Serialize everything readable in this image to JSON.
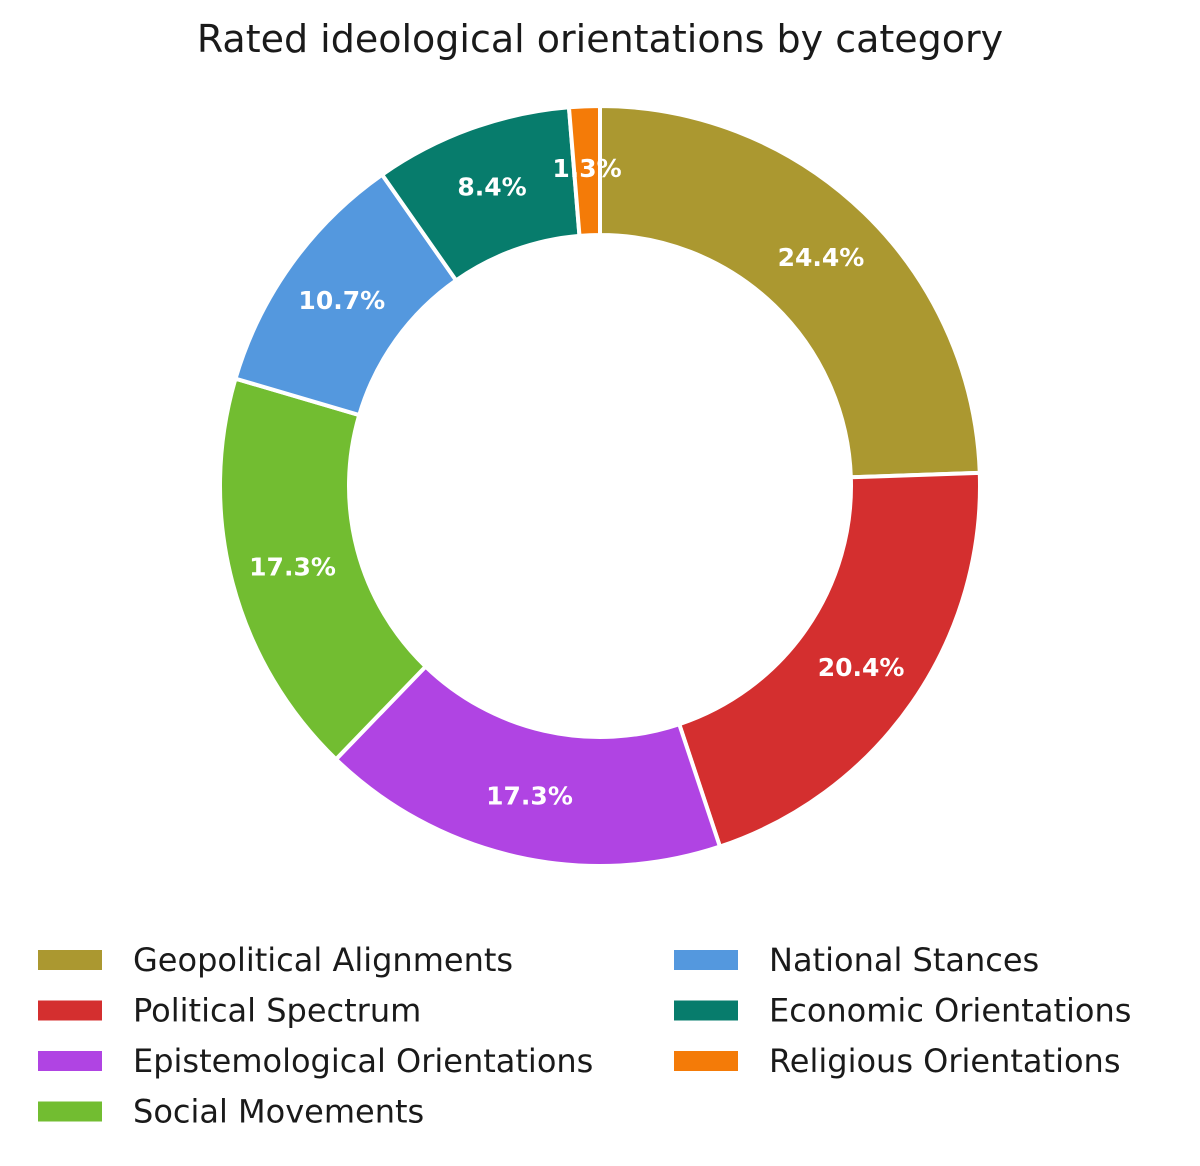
{
  "chart_data": {
    "type": "pie",
    "variant": "donut",
    "title": "Rated ideological orientations by category",
    "start_angle_deg": 90,
    "direction": "clockwise",
    "slices": [
      {
        "label": "Geopolitical Alignments",
        "value": 24.4,
        "display": "24.4%",
        "color": "#ab9830"
      },
      {
        "label": "Political Spectrum",
        "value": 20.4,
        "display": "20.4%",
        "color": "#d42f2f"
      },
      {
        "label": "Epistemological Orientations",
        "value": 17.3,
        "display": "17.3%",
        "color": "#b044e3"
      },
      {
        "label": "Social Movements",
        "value": 17.3,
        "display": "17.3%",
        "color": "#72bd31"
      },
      {
        "label": "National Stances",
        "value": 10.7,
        "display": "10.7%",
        "color": "#5498de"
      },
      {
        "label": "Economic Orientations",
        "value": 8.4,
        "display": "8.4%",
        "color": "#077c6c"
      },
      {
        "label": "Religious Orientations",
        "value": 1.3,
        "display": "1.3%",
        "color": "#f47b08"
      }
    ],
    "legend_position": "bottom",
    "legend_columns": 2
  }
}
